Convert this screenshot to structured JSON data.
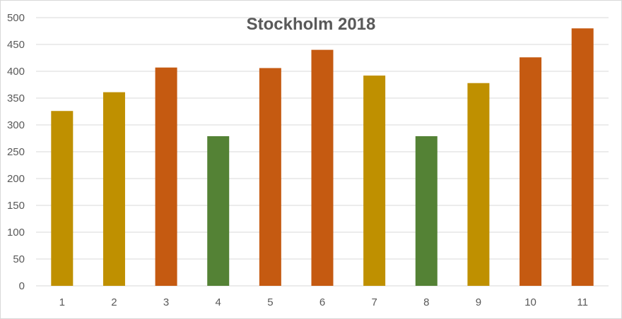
{
  "chart_data": {
    "type": "bar",
    "title": "Stockholm 2018",
    "xlabel": "",
    "ylabel": "",
    "categories": [
      "1",
      "2",
      "3",
      "4",
      "5",
      "6",
      "7",
      "8",
      "9",
      "10",
      "11"
    ],
    "values": [
      326,
      361,
      407,
      279,
      406,
      440,
      392,
      279,
      378,
      426,
      480
    ],
    "bar_colors": [
      "#bf9000",
      "#bf9000",
      "#c55a11",
      "#548235",
      "#c55a11",
      "#c55a11",
      "#bf9000",
      "#548235",
      "#bf9000",
      "#c55a11",
      "#c55a11"
    ],
    "ylim": [
      0,
      500
    ],
    "yticks": [
      0,
      50,
      100,
      150,
      200,
      250,
      300,
      350,
      400,
      450,
      500
    ],
    "grid": true,
    "legend": "none"
  },
  "colors": {
    "gridline": "#d9d9d9",
    "axis_text": "#595959"
  }
}
